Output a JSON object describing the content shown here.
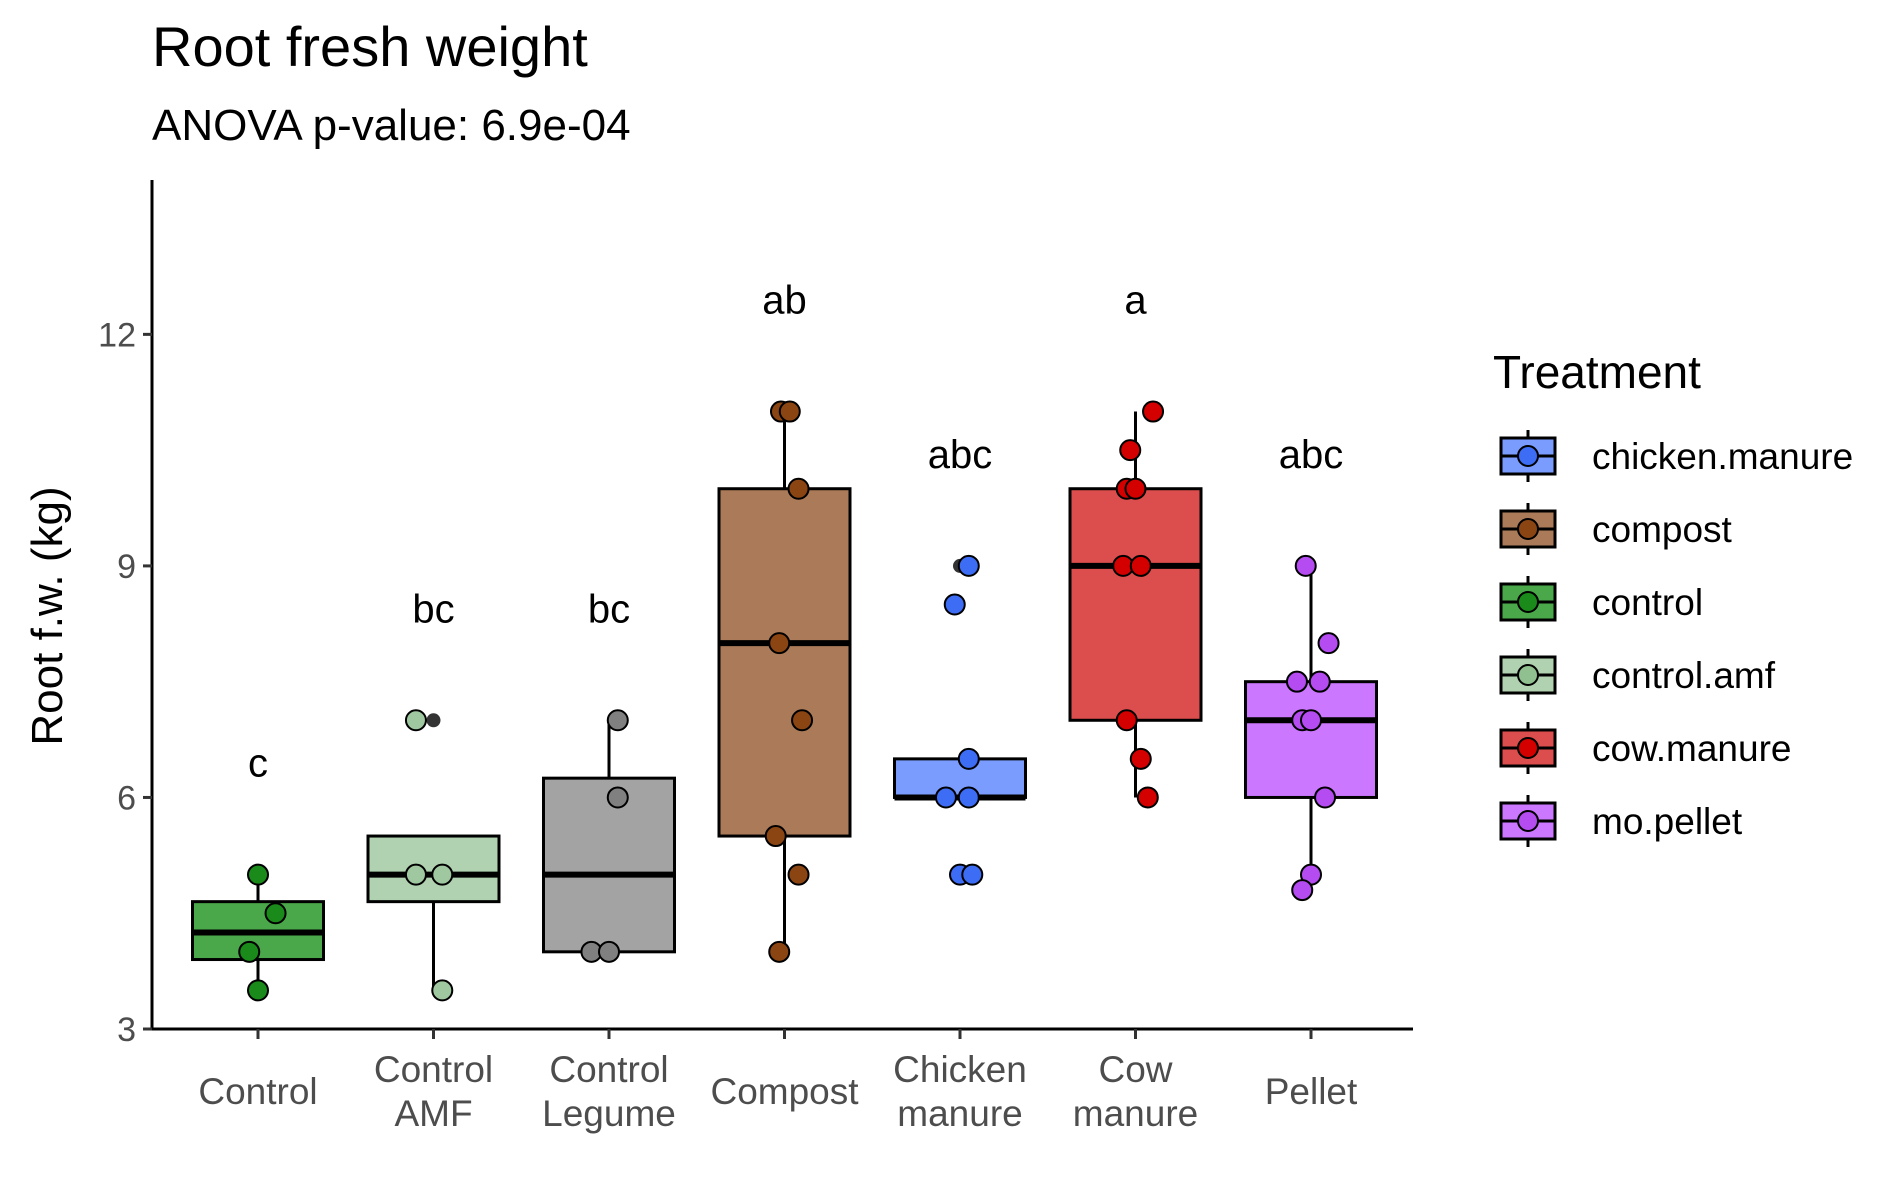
{
  "chart_data": {
    "type": "boxplot",
    "title": "Root fresh weight",
    "subtitle": "ANOVA p-value: 6.9e-04",
    "ylabel": "Root f.w. (kg)",
    "xlabel": "",
    "ylim": [
      3,
      14
    ],
    "yticks": [
      3,
      6,
      9,
      12
    ],
    "grid": false,
    "legend_position": "right",
    "legend_title": "Treatment",
    "legend": [
      {
        "label": "chicken.manure",
        "color": "#7a9cff",
        "point_color": "#3d6cf5"
      },
      {
        "label": "compost",
        "color": "#ab7b59",
        "point_color": "#8b4513"
      },
      {
        "label": "control",
        "color": "#4aa84a",
        "point_color": "#1a8a1a"
      },
      {
        "label": "control.amf",
        "color": "#b0d2b0",
        "point_color": "#90c090"
      },
      {
        "label": "cow.manure",
        "color": "#dc4d4d",
        "point_color": "#d40000"
      },
      {
        "label": "mo.pellet",
        "color": "#cc77ff",
        "point_color": "#b44cf2"
      }
    ],
    "groups": [
      {
        "tick": [
          "Control"
        ],
        "letter": "c",
        "color": "#4aa84a",
        "point_color": "#1a8a1a",
        "min": 3.5,
        "q1": 3.9,
        "median": 4.25,
        "q3": 4.65,
        "max": 5.0,
        "outliers": [],
        "points": [
          [
            0.0,
            5.0
          ],
          [
            0.1,
            4.5
          ],
          [
            -0.05,
            4.0
          ],
          [
            0.0,
            3.5
          ]
        ]
      },
      {
        "tick": [
          "Control",
          "AMF"
        ],
        "letter": "bc",
        "color": "#b0d2b0",
        "point_color": "#a0c8a0",
        "min": 3.5,
        "q1": 4.65,
        "median": 5.0,
        "q3": 5.5,
        "max": 5.5,
        "outliers": [
          [
            0.0,
            7.0
          ]
        ],
        "points": [
          [
            -0.1,
            7.0
          ],
          [
            -0.1,
            5.0
          ],
          [
            0.05,
            5.0
          ],
          [
            0.05,
            3.5
          ]
        ]
      },
      {
        "tick": [
          "Control",
          "Legume"
        ],
        "letter": "bc",
        "color": "#a3a3a3",
        "point_color": "#808080",
        "min": 4.0,
        "q1": 4.0,
        "median": 5.0,
        "q3": 6.25,
        "max": 7.0,
        "outliers": [],
        "points": [
          [
            0.05,
            7.0
          ],
          [
            0.05,
            6.0
          ],
          [
            -0.1,
            4.0
          ],
          [
            0.0,
            4.0
          ]
        ]
      },
      {
        "tick": [
          "Compost"
        ],
        "letter": "ab",
        "color": "#ab7b59",
        "point_color": "#8b4513",
        "min": 4.0,
        "q1": 5.5,
        "median": 8.0,
        "q3": 10.0,
        "max": 11.0,
        "outliers": [],
        "points": [
          [
            -0.02,
            11.0
          ],
          [
            0.03,
            11.0
          ],
          [
            0.08,
            10.0
          ],
          [
            -0.03,
            8.0
          ],
          [
            0.1,
            7.0
          ],
          [
            -0.05,
            5.5
          ],
          [
            0.08,
            5.0
          ],
          [
            -0.03,
            4.0
          ]
        ]
      },
      {
        "tick": [
          "Chicken",
          "manure"
        ],
        "letter": "abc",
        "color": "#7a9cff",
        "point_color": "#3d6cf5",
        "min": 6.0,
        "q1": 6.0,
        "median": 6.0,
        "q3": 6.5,
        "max": 6.5,
        "outliers": [
          [
            0.0,
            9.0
          ],
          [
            -0.03,
            8.5
          ],
          [
            0.0,
            5.0
          ]
        ],
        "points": [
          [
            0.05,
            9.0
          ],
          [
            -0.03,
            8.5
          ],
          [
            0.05,
            6.5
          ],
          [
            -0.08,
            6.0
          ],
          [
            0.05,
            6.0
          ],
          [
            0.0,
            5.0
          ],
          [
            0.07,
            5.0
          ]
        ]
      },
      {
        "tick": [
          "Cow",
          "manure"
        ],
        "letter": "a",
        "color": "#dc4d4d",
        "point_color": "#d40000",
        "min": 6.0,
        "q1": 7.0,
        "median": 9.0,
        "q3": 10.0,
        "max": 11.0,
        "outliers": [],
        "points": [
          [
            0.1,
            11.0
          ],
          [
            -0.03,
            10.5
          ],
          [
            -0.05,
            10.0
          ],
          [
            0.0,
            10.0
          ],
          [
            -0.07,
            9.0
          ],
          [
            0.03,
            9.0
          ],
          [
            -0.05,
            7.0
          ],
          [
            0.03,
            6.5
          ],
          [
            0.07,
            6.0
          ]
        ]
      },
      {
        "tick": [
          "Pellet"
        ],
        "letter": "abc",
        "color": "#cc77ff",
        "point_color": "#b44cf2",
        "min": 4.8,
        "q1": 6.0,
        "median": 7.0,
        "q3": 7.5,
        "max": 9.0,
        "outliers": [],
        "points": [
          [
            -0.03,
            9.0
          ],
          [
            0.1,
            8.0
          ],
          [
            -0.08,
            7.5
          ],
          [
            0.05,
            7.5
          ],
          [
            -0.05,
            7.0
          ],
          [
            0.0,
            7.0
          ],
          [
            0.08,
            6.0
          ],
          [
            0.0,
            5.0
          ],
          [
            -0.05,
            4.8
          ]
        ]
      }
    ]
  }
}
